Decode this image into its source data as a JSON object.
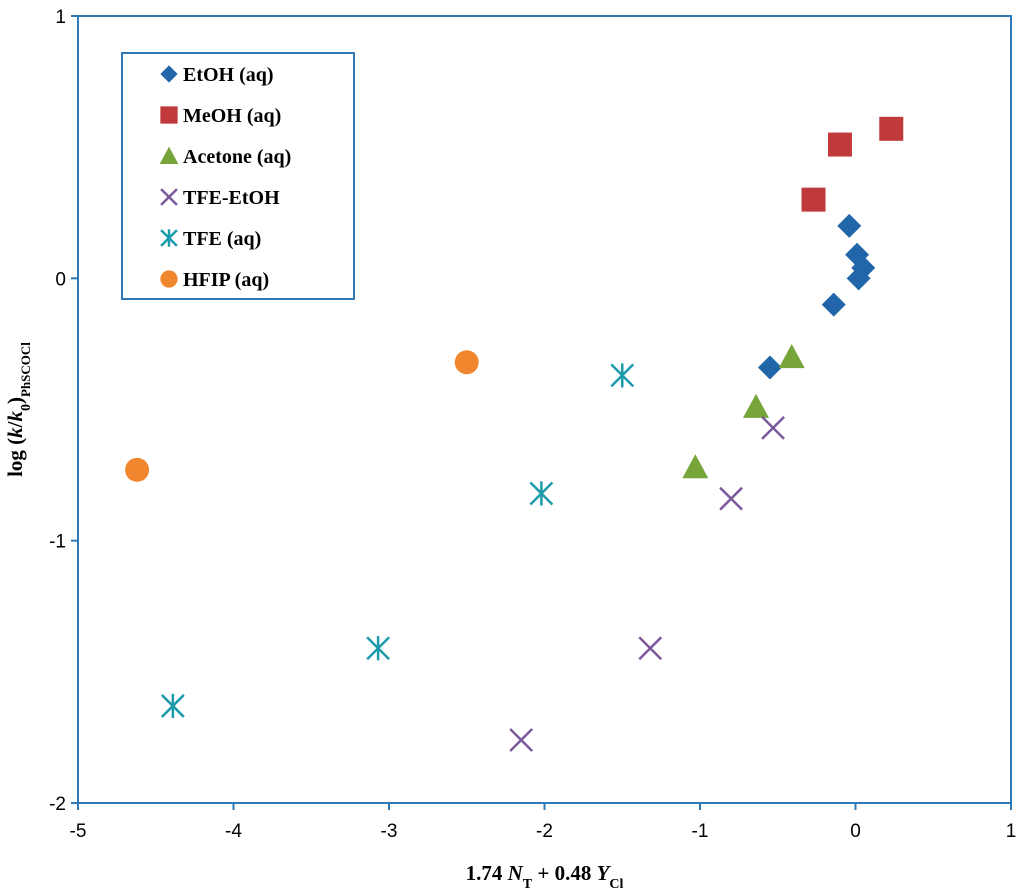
{
  "chart_data": {
    "type": "scatter",
    "title": "",
    "xlabel": {
      "prefix": "1.74 ",
      "var1": "N",
      "sub1": "T",
      "middle": " + 0.48 ",
      "var2": "Y",
      "sub2": "Cl"
    },
    "ylabel": {
      "prefix": "log (",
      "var1": "k",
      "slash": "/",
      "var2": "k",
      "sub2": "0",
      "close": ")",
      "sub": "PhSCOCl"
    },
    "xlim": [
      -5,
      1
    ],
    "ylim": [
      -2,
      1
    ],
    "xticks": [
      "-5",
      "-4",
      "-3",
      "-2",
      "-1",
      "0",
      "1"
    ],
    "yticks": [
      "-2",
      "-1",
      "0",
      "1"
    ],
    "grid": false,
    "legend_position": "top-left",
    "series": [
      {
        "name": "EtOH (aq)",
        "marker": "diamond",
        "color": "#2166a8",
        "points": [
          [
            -0.04,
            0.2
          ],
          [
            0.01,
            0.09
          ],
          [
            0.05,
            0.04
          ],
          [
            0.02,
            0.0
          ],
          [
            -0.14,
            -0.1
          ],
          [
            -0.55,
            -0.34
          ]
        ]
      },
      {
        "name": "MeOH (aq)",
        "marker": "square",
        "color": "#c0393b",
        "points": [
          [
            0.23,
            0.57
          ],
          [
            -0.1,
            0.51
          ],
          [
            -0.27,
            0.3
          ]
        ]
      },
      {
        "name": "Acetone (aq)",
        "marker": "triangle",
        "color": "#77a53a",
        "points": [
          [
            -0.41,
            -0.3
          ],
          [
            -0.64,
            -0.49
          ],
          [
            -1.03,
            -0.72
          ]
        ]
      },
      {
        "name": "TFE-EtOH",
        "marker": "x",
        "color": "#7b5a9c",
        "points": [
          [
            -0.53,
            -0.57
          ],
          [
            -0.8,
            -0.84
          ],
          [
            -1.32,
            -1.41
          ],
          [
            -2.15,
            -1.76
          ]
        ]
      },
      {
        "name": "TFE (aq)",
        "marker": "asterisk",
        "color": "#1c9bab",
        "points": [
          [
            -1.5,
            -0.37
          ],
          [
            -2.02,
            -0.82
          ],
          [
            -3.07,
            -1.41
          ],
          [
            -4.39,
            -1.63
          ]
        ]
      },
      {
        "name": "HFIP (aq)",
        "marker": "circle",
        "color": "#f0862d",
        "points": [
          [
            -2.5,
            -0.32
          ],
          [
            -4.62,
            -0.73
          ]
        ]
      }
    ]
  }
}
